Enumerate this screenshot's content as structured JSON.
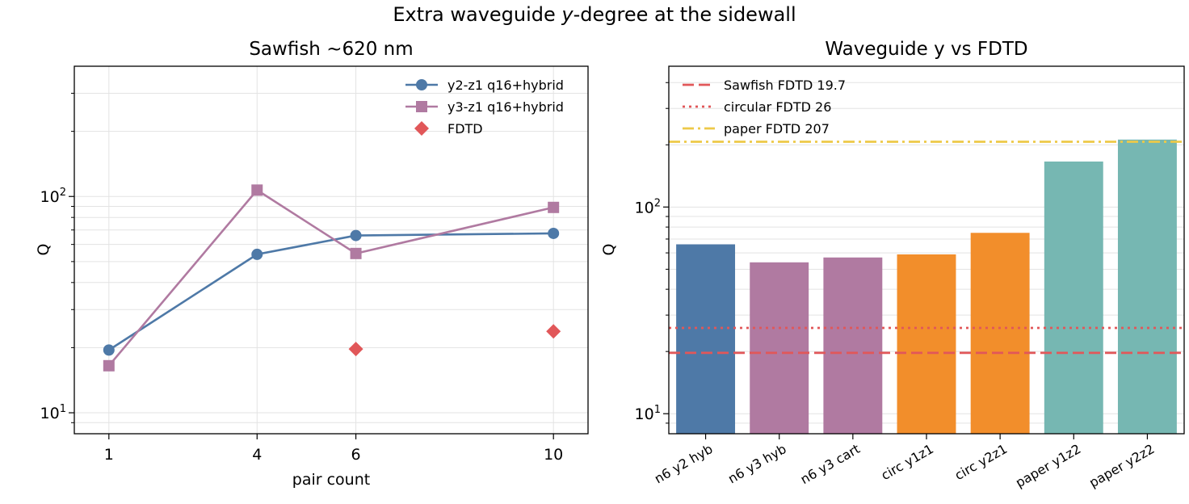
{
  "figure": {
    "suptitle_parts": [
      "Extra waveguide ",
      "y",
      "-degree at the sidewall"
    ]
  },
  "chart_data": [
    {
      "type": "line",
      "title": "Sawfish ~620 nm",
      "xlabel": "pair count",
      "ylabel": "Q",
      "yscale": "log",
      "ylim": [
        8,
        400
      ],
      "x_ticks": [
        1,
        4,
        6,
        10
      ],
      "y_ticks": [
        {
          "value": 10,
          "label": "10",
          "exp": "1"
        },
        {
          "value": 100,
          "label": "10",
          "exp": "2"
        }
      ],
      "grid": true,
      "legend_position": "upper right",
      "series": [
        {
          "name": "y2-z1 q16+hybrid",
          "color": "#4e79a7",
          "marker": "circle",
          "line": true,
          "x": [
            1,
            4,
            6,
            10
          ],
          "y": [
            19.5,
            54,
            66,
            67.5
          ]
        },
        {
          "name": "y3-z1 q16+hybrid",
          "color": "#b07aa1",
          "marker": "square",
          "line": true,
          "x": [
            1,
            4,
            6,
            10
          ],
          "y": [
            16.5,
            107,
            54.5,
            89
          ]
        },
        {
          "name": "FDTD",
          "color": "#e15759",
          "marker": "diamond",
          "line": false,
          "x": [
            6,
            10
          ],
          "y": [
            19.7,
            23.8
          ]
        }
      ]
    },
    {
      "type": "bar",
      "title": "Waveguide y vs FDTD",
      "ylabel": "Q",
      "yscale": "log",
      "ylim": [
        8,
        480
      ],
      "y_ticks": [
        {
          "value": 10,
          "label": "10",
          "exp": "1"
        },
        {
          "value": 100,
          "label": "10",
          "exp": "2"
        }
      ],
      "grid": true,
      "legend_position": "upper left",
      "categories": [
        "n6 y2 hyb",
        "n6 y3 hyb",
        "n6 y3 cart",
        "circ y1z1",
        "circ y2z1",
        "paper y1z2",
        "paper y2z2"
      ],
      "values": [
        66,
        54,
        57,
        59,
        75,
        166,
        212
      ],
      "bar_colors": [
        "#4e79a7",
        "#b07aa1",
        "#b07aa1",
        "#f28e2b",
        "#f28e2b",
        "#76b7b2",
        "#76b7b2"
      ],
      "reference_lines": [
        {
          "name": "Sawfish FDTD 19.7",
          "value": 19.7,
          "color": "#e15759",
          "style": "dashed"
        },
        {
          "name": "circular FDTD 26",
          "value": 26,
          "color": "#e15759",
          "style": "dotted"
        },
        {
          "name": "paper FDTD 207",
          "value": 207,
          "color": "#edc948",
          "style": "dashdot"
        }
      ]
    }
  ]
}
